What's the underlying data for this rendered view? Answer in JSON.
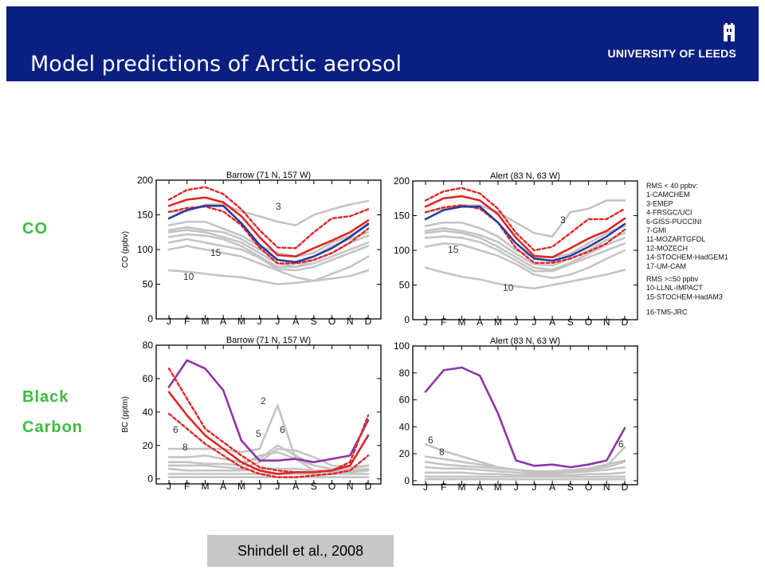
{
  "slide": {
    "title": "Model predictions of Arctic aerosol",
    "university": "UNIVERSITY OF LEEDS",
    "row_labels": {
      "co": "CO",
      "bc_line1": "Black",
      "bc_line2": "Carbon"
    },
    "citation": "Shindell et al., 2008"
  },
  "colors": {
    "header": "#0a1f80",
    "model_grey": "#c4c4c4",
    "obs_red": "#e02525",
    "obs_blue": "#2a3c9a",
    "obs_purple": "#8c35a8",
    "side_label": "#3dbb3d"
  },
  "legend": {
    "group1_title": "RMS < 40 ppbv:",
    "group1": [
      "1-CAMCHEM",
      "3-EMEP",
      "4-FRSGC/UCI",
      "6-GISS-PUCCINI",
      "7-GMI",
      "11-MOZARTGFDL",
      "12-MOZECH",
      "14-STOCHEM-HadGEM1",
      "17-UM-CAM"
    ],
    "group2_title": "RMS >=50 ppbv",
    "group2": [
      "10-LLNL-IMPACT",
      "15-STOCHEM-HadAM3",
      "16-TM5-JRC"
    ]
  },
  "chart_data": [
    {
      "type": "line",
      "title": "Barrow (71 N, 157 W)",
      "ylabel": "CO (ppbv)",
      "ylim": [
        0,
        200
      ],
      "yticks": [
        0,
        50,
        100,
        150,
        200
      ],
      "x": [
        "J",
        "F",
        "M",
        "A",
        "M",
        "J",
        "J",
        "A",
        "S",
        "O",
        "N",
        "D"
      ],
      "series": [
        {
          "style": "red-solid",
          "values": [
            163,
            172,
            175,
            168,
            148,
            118,
            92,
            90,
            102,
            113,
            125,
            142
          ]
        },
        {
          "style": "red-dotted-upper",
          "values": [
            172,
            186,
            190,
            180,
            158,
            128,
            103,
            102,
            125,
            145,
            148,
            158
          ]
        },
        {
          "style": "red-dotted-lower",
          "values": [
            154,
            160,
            162,
            155,
            135,
            103,
            80,
            80,
            85,
            95,
            110,
            130
          ]
        },
        {
          "style": "blue",
          "values": [
            145,
            157,
            163,
            163,
            138,
            107,
            85,
            82,
            90,
            102,
            118,
            137
          ]
        },
        {
          "style": "grey-3",
          "values": [
            155,
            155,
            165,
            165,
            155,
            148,
            140,
            135,
            150,
            158,
            165,
            170
          ]
        },
        {
          "style": "grey",
          "values": [
            135,
            140,
            140,
            130,
            120,
            105,
            95,
            90,
            95,
            110,
            120,
            135
          ]
        },
        {
          "style": "grey",
          "values": [
            128,
            132,
            128,
            125,
            115,
            100,
            85,
            80,
            90,
            105,
            115,
            125
          ]
        },
        {
          "style": "grey",
          "values": [
            125,
            128,
            125,
            118,
            110,
            95,
            80,
            75,
            85,
            95,
            110,
            120
          ]
        },
        {
          "style": "grey",
          "values": [
            118,
            122,
            120,
            115,
            105,
            90,
            75,
            75,
            80,
            90,
            100,
            110
          ]
        },
        {
          "style": "grey",
          "values": [
            110,
            115,
            110,
            105,
            100,
            88,
            72,
            70,
            75,
            85,
            95,
            105
          ]
        },
        {
          "style": "grey-15",
          "values": [
            100,
            105,
            100,
            95,
            90,
            80,
            70,
            60,
            55,
            65,
            75,
            90
          ]
        },
        {
          "style": "grey-10",
          "values": [
            70,
            68,
            65,
            62,
            60,
            55,
            50,
            52,
            55,
            58,
            62,
            70
          ]
        }
      ],
      "annotations": [
        {
          "text": "3",
          "x": "J",
          "y": 155
        },
        {
          "text": "15",
          "x": "M",
          "y": 88
        },
        {
          "text": "10",
          "x": "F",
          "y": 57
        }
      ]
    },
    {
      "type": "line",
      "title": "Alert (83 N, 63 W)",
      "ylim": [
        0,
        200
      ],
      "yticks": [
        0,
        50,
        100,
        150,
        200
      ],
      "x": [
        "J",
        "F",
        "M",
        "A",
        "M",
        "J",
        "J",
        "A",
        "S",
        "O",
        "N",
        "D"
      ],
      "series": [
        {
          "style": "red-solid",
          "values": [
            163,
            175,
            178,
            172,
            152,
            118,
            92,
            90,
            103,
            117,
            128,
            146
          ]
        },
        {
          "style": "red-dotted-upper",
          "values": [
            172,
            185,
            190,
            182,
            160,
            125,
            100,
            105,
            125,
            145,
            145,
            160
          ]
        },
        {
          "style": "red-dotted-lower",
          "values": [
            155,
            162,
            165,
            160,
            140,
            103,
            82,
            82,
            88,
            98,
            110,
            130
          ]
        },
        {
          "style": "blue",
          "values": [
            145,
            158,
            163,
            163,
            140,
            110,
            88,
            85,
            92,
            105,
            120,
            138
          ]
        },
        {
          "style": "grey-3",
          "values": [
            155,
            160,
            165,
            165,
            155,
            140,
            125,
            120,
            155,
            160,
            172,
            172
          ]
        },
        {
          "style": "grey",
          "values": [
            135,
            140,
            140,
            132,
            120,
            100,
            90,
            90,
            95,
            110,
            125,
            135
          ]
        },
        {
          "style": "grey",
          "values": [
            128,
            132,
            128,
            122,
            112,
            95,
            80,
            78,
            88,
            100,
            115,
            125
          ]
        },
        {
          "style": "grey",
          "values": [
            125,
            128,
            125,
            118,
            105,
            90,
            75,
            72,
            82,
            95,
            108,
            118
          ]
        },
        {
          "style": "grey",
          "values": [
            118,
            120,
            118,
            112,
            100,
            85,
            70,
            70,
            80,
            90,
            100,
            110
          ]
        },
        {
          "style": "grey-15",
          "values": [
            105,
            110,
            108,
            100,
            92,
            80,
            65,
            60,
            65,
            75,
            88,
            100
          ]
        },
        {
          "style": "grey-10",
          "values": [
            75,
            68,
            62,
            58,
            52,
            48,
            45,
            50,
            55,
            60,
            65,
            72
          ]
        }
      ],
      "annotations": [
        {
          "text": "3",
          "x": "J",
          "y": 140
        },
        {
          "text": "15",
          "x": "F",
          "y": 96
        },
        {
          "text": "10",
          "x": "M",
          "y": 43
        }
      ]
    },
    {
      "type": "line",
      "title": "Barrow (71 N, 157 W)",
      "ylabel": "BC (pptm)",
      "ylim": [
        -3,
        80
      ],
      "yticks": [
        0,
        20,
        40,
        60,
        80
      ],
      "x": [
        "J",
        "F",
        "M",
        "A",
        "M",
        "J",
        "J",
        "A",
        "S",
        "O",
        "N",
        "D"
      ],
      "series": [
        {
          "style": "purple",
          "values": [
            55,
            71,
            66,
            53,
            23,
            11,
            11,
            12,
            10,
            12,
            14,
            35
          ]
        },
        {
          "style": "red-solid",
          "values": [
            52,
            38,
            26,
            18,
            10,
            5,
            3,
            4,
            4,
            5,
            8,
            26
          ]
        },
        {
          "style": "red-dotted-upper",
          "values": [
            66,
            48,
            30,
            22,
            14,
            7,
            5,
            4,
            4,
            5,
            10,
            38
          ]
        },
        {
          "style": "red-dotted-lower",
          "values": [
            39,
            30,
            21,
            14,
            7,
            3,
            1,
            1,
            2,
            3,
            5,
            14
          ]
        },
        {
          "style": "grey-2",
          "values": [
            18,
            18,
            18,
            18,
            16,
            18,
            44,
            12,
            8,
            6,
            6,
            8
          ]
        },
        {
          "style": "grey",
          "values": [
            13,
            13,
            14,
            12,
            10,
            12,
            20,
            14,
            8,
            6,
            5,
            6
          ]
        },
        {
          "style": "grey",
          "values": [
            10,
            10,
            9,
            9,
            8,
            14,
            16,
            12,
            5,
            4,
            4,
            5
          ]
        },
        {
          "style": "grey",
          "values": [
            8,
            8,
            8,
            7,
            6,
            10,
            18,
            17,
            13,
            8,
            7,
            8
          ]
        },
        {
          "style": "grey",
          "values": [
            6,
            5,
            5,
            5,
            5,
            6,
            6,
            6,
            5,
            5,
            5,
            6
          ]
        },
        {
          "style": "grey",
          "values": [
            3,
            3,
            3,
            3,
            3,
            3,
            3,
            3,
            3,
            3,
            3,
            3
          ]
        },
        {
          "style": "grey",
          "values": [
            1,
            1,
            1,
            1,
            1,
            1,
            1,
            1,
            1,
            1,
            1,
            1
          ]
        }
      ],
      "annotations": [
        {
          "text": "2",
          "x": "J",
          "y": 45
        },
        {
          "text": "6",
          "x": "J",
          "y": 26
        },
        {
          "text": "5",
          "x": "J",
          "y": 22
        },
        {
          "text": "6",
          "x": "J",
          "y": 23
        },
        {
          "text": "8",
          "x": "J",
          "y": 14
        }
      ]
    },
    {
      "type": "line",
      "title": "Alert (83 N, 63 W)",
      "ylim": [
        -3,
        100
      ],
      "yticks": [
        0,
        20,
        40,
        60,
        80,
        100
      ],
      "x": [
        "J",
        "F",
        "M",
        "A",
        "M",
        "J",
        "J",
        "A",
        "S",
        "O",
        "N",
        "D"
      ],
      "series": [
        {
          "style": "purple",
          "values": [
            66,
            82,
            84,
            78,
            50,
            15,
            11,
            12,
            10,
            12,
            15,
            39
          ]
        },
        {
          "style": "grey",
          "values": [
            27,
            22,
            18,
            14,
            10,
            8,
            6,
            6,
            7,
            9,
            12,
            15
          ]
        },
        {
          "style": "grey",
          "values": [
            18,
            16,
            14,
            12,
            10,
            8,
            7,
            7,
            8,
            9,
            11,
            25
          ]
        },
        {
          "style": "grey",
          "values": [
            14,
            12,
            11,
            10,
            9,
            8,
            7,
            6,
            6,
            8,
            10,
            14
          ]
        },
        {
          "style": "grey",
          "values": [
            10,
            9,
            9,
            8,
            7,
            6,
            5,
            5,
            6,
            7,
            8,
            10
          ]
        },
        {
          "style": "grey",
          "values": [
            6,
            6,
            6,
            5,
            5,
            4,
            4,
            4,
            4,
            5,
            5,
            6
          ]
        },
        {
          "style": "grey",
          "values": [
            3,
            3,
            3,
            3,
            3,
            3,
            3,
            3,
            3,
            3,
            3,
            3
          ]
        },
        {
          "style": "grey",
          "values": [
            1,
            1,
            1,
            1,
            1,
            1,
            1,
            1,
            1,
            1,
            1,
            1
          ]
        }
      ],
      "annotations": [
        {
          "text": "6",
          "x": "J",
          "y": 28
        },
        {
          "text": "8",
          "x": "J",
          "y": 15
        },
        {
          "text": "6",
          "x": "D",
          "y": 26
        }
      ]
    }
  ]
}
